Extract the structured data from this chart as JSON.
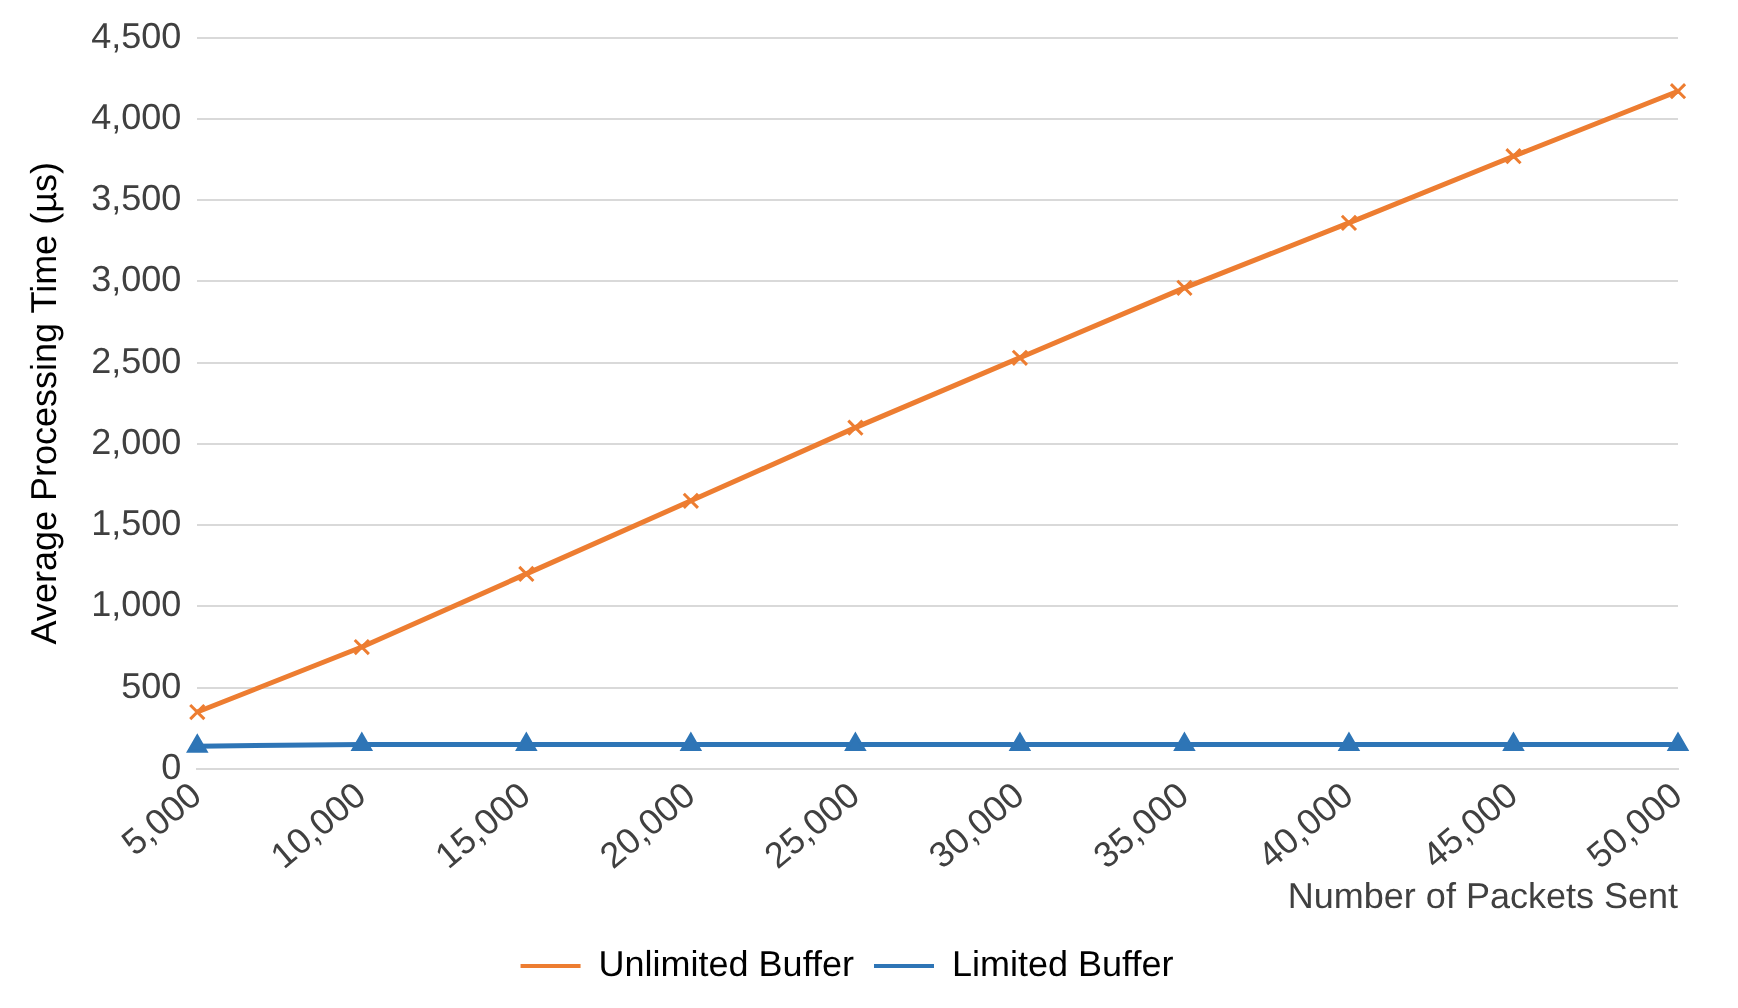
{
  "chart_data": {
    "type": "line",
    "xlabel": "Number of Packets Sent",
    "ylabel": "Average Processing Time (µs)",
    "categories": [
      "5,000",
      "10,000",
      "15,000",
      "20,000",
      "25,000",
      "30,000",
      "35,000",
      "40,000",
      "45,000",
      "50,000"
    ],
    "series": [
      {
        "name": "Unlimited Buffer",
        "color": "#ed7d31",
        "marker": "cross",
        "values": [
          350,
          750,
          1200,
          1650,
          2100,
          2530,
          2960,
          3360,
          3770,
          4170
        ]
      },
      {
        "name": "Limited Buffer",
        "color": "#2e75b6",
        "marker": "triangle",
        "values": [
          140,
          150,
          150,
          150,
          150,
          150,
          150,
          150,
          150,
          150
        ]
      }
    ],
    "ylim": [
      0,
      4500
    ],
    "yticks": [
      {
        "value": 0,
        "label": "0"
      },
      {
        "value": 500,
        "label": "500"
      },
      {
        "value": 1000,
        "label": "1,000"
      },
      {
        "value": 1500,
        "label": "1,500"
      },
      {
        "value": 2000,
        "label": "2,000"
      },
      {
        "value": 2500,
        "label": "2,500"
      },
      {
        "value": 3000,
        "label": "3,000"
      },
      {
        "value": 3500,
        "label": "3,500"
      },
      {
        "value": 4000,
        "label": "4,000"
      },
      {
        "value": 4500,
        "label": "4,500"
      }
    ],
    "grid": "y",
    "legend": "bottom",
    "line_style": "solid"
  }
}
